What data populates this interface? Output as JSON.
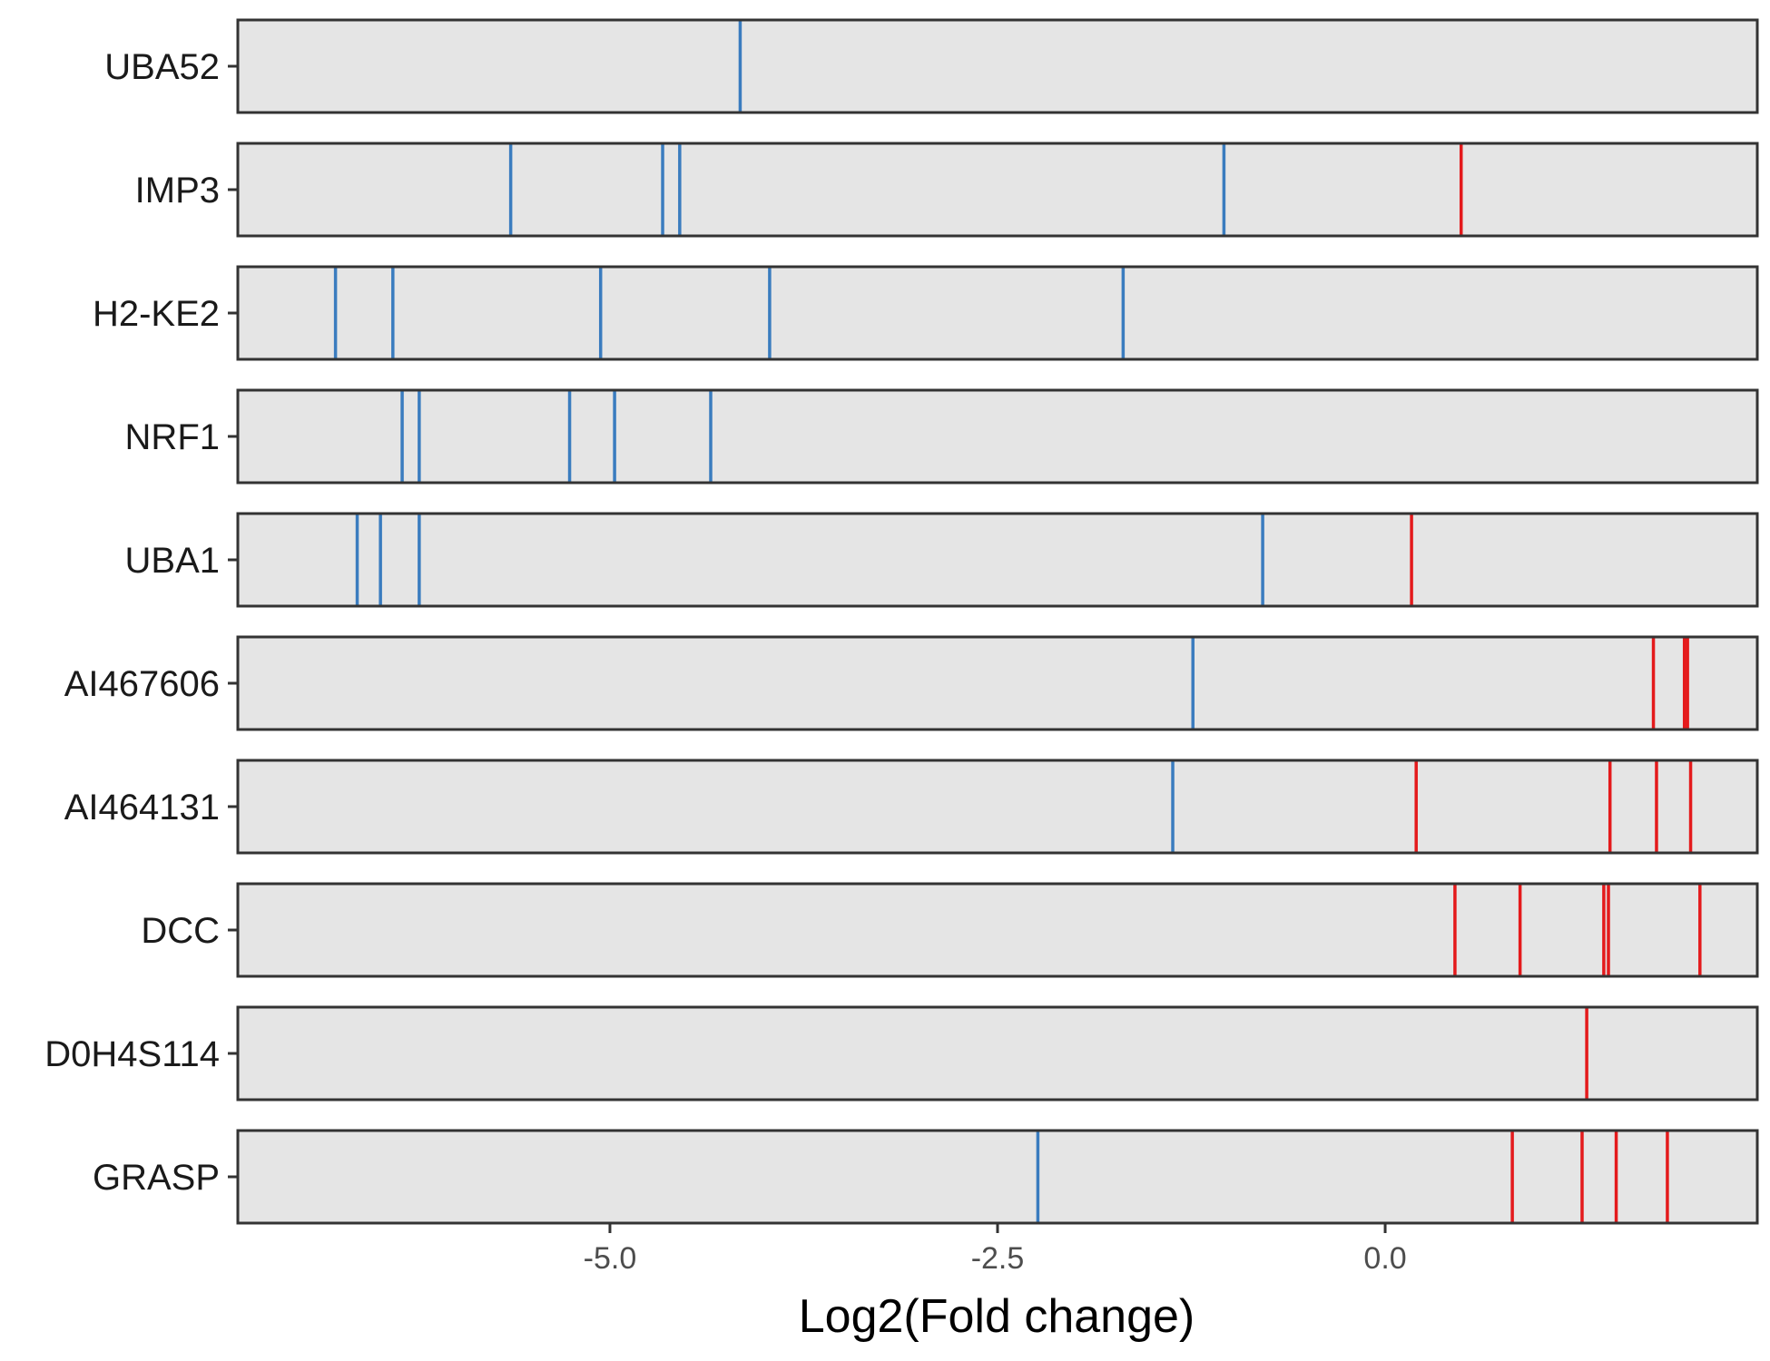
{
  "chart_data": {
    "type": "barcode",
    "xlabel": "Log2(Fold change)",
    "xlim": [
      -7.4,
      2.4
    ],
    "xticks": [
      -5.0,
      -2.5,
      0.0
    ],
    "xtick_labels": [
      "-5.0",
      "-2.5",
      "0.0"
    ],
    "grid": false,
    "colors": {
      "negative": "#3a7cbf",
      "positive": "#e41a1c",
      "panel": "#e5e5e5",
      "border": "#333333"
    },
    "genes": [
      {
        "name": "UBA52",
        "values": [
          -4.16
        ]
      },
      {
        "name": "IMP3",
        "values": [
          -5.64,
          -4.66,
          -4.55,
          -1.04,
          0.49
        ]
      },
      {
        "name": "H2-KE2",
        "values": [
          -6.77,
          -6.4,
          -5.06,
          -3.97,
          -1.69
        ]
      },
      {
        "name": "NRF1",
        "values": [
          -6.34,
          -6.23,
          -5.26,
          -4.97,
          -4.35
        ]
      },
      {
        "name": "UBA1",
        "values": [
          -6.63,
          -6.48,
          -6.23,
          -0.79,
          0.17
        ]
      },
      {
        "name": "AI467606",
        "values": [
          -1.24,
          1.73,
          1.93,
          1.95
        ]
      },
      {
        "name": "AI464131",
        "values": [
          -1.37,
          0.2,
          1.45,
          1.75,
          1.97
        ]
      },
      {
        "name": "DCC",
        "values": [
          0.45,
          0.87,
          1.41,
          1.44,
          2.03
        ]
      },
      {
        "name": "D0H4S114",
        "values": [
          1.3
        ]
      },
      {
        "name": "GRASP",
        "values": [
          -2.24,
          0.82,
          1.27,
          1.49,
          1.82
        ]
      }
    ]
  }
}
